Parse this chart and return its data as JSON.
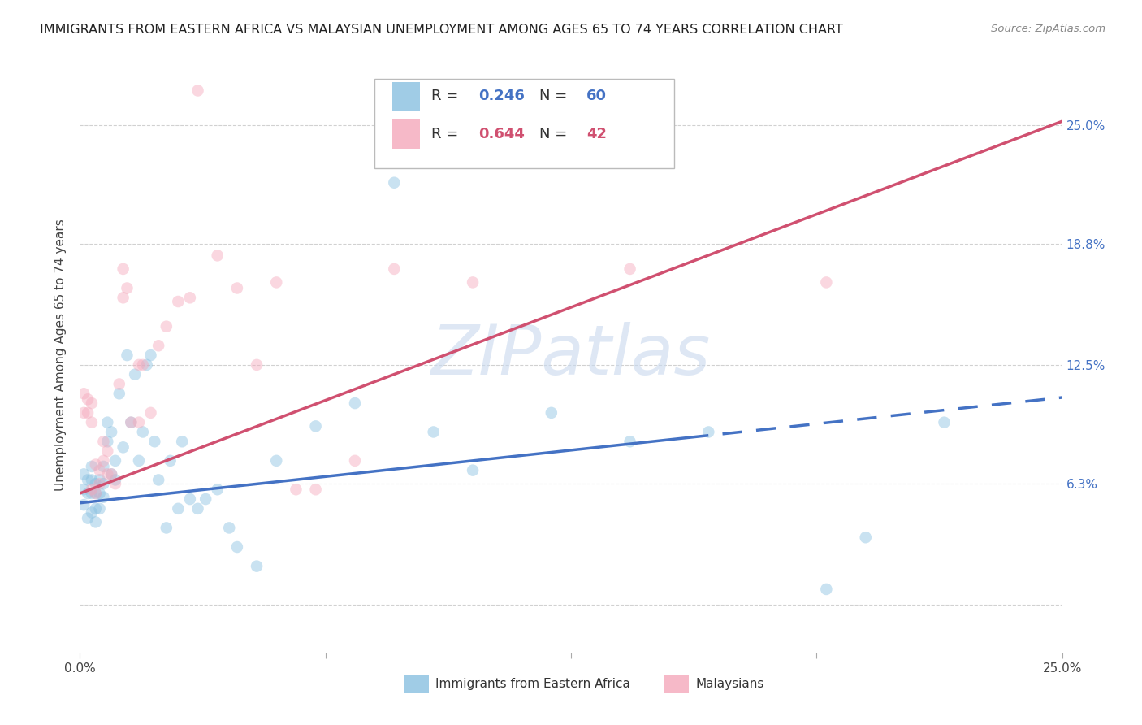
{
  "title": "IMMIGRANTS FROM EASTERN AFRICA VS MALAYSIAN UNEMPLOYMENT AMONG AGES 65 TO 74 YEARS CORRELATION CHART",
  "source": "Source: ZipAtlas.com",
  "ylabel": "Unemployment Among Ages 65 to 74 years",
  "xlim": [
    0.0,
    0.25
  ],
  "ylim": [
    -0.025,
    0.285
  ],
  "ytick_vals": [
    0.0,
    0.063,
    0.125,
    0.188,
    0.25
  ],
  "right_ytick_labels": [
    "",
    "6.3%",
    "12.5%",
    "18.8%",
    "25.0%"
  ],
  "blue_R": "0.246",
  "blue_N": "60",
  "pink_R": "0.644",
  "pink_N": "42",
  "blue_scatter_x": [
    0.001,
    0.001,
    0.001,
    0.002,
    0.002,
    0.002,
    0.003,
    0.003,
    0.003,
    0.003,
    0.004,
    0.004,
    0.004,
    0.004,
    0.005,
    0.005,
    0.005,
    0.006,
    0.006,
    0.006,
    0.007,
    0.007,
    0.008,
    0.008,
    0.009,
    0.009,
    0.01,
    0.011,
    0.012,
    0.013,
    0.014,
    0.015,
    0.016,
    0.017,
    0.018,
    0.019,
    0.02,
    0.022,
    0.023,
    0.025,
    0.026,
    0.028,
    0.03,
    0.032,
    0.035,
    0.038,
    0.04,
    0.045,
    0.05,
    0.06,
    0.07,
    0.08,
    0.09,
    0.1,
    0.12,
    0.14,
    0.16,
    0.19,
    0.2,
    0.22
  ],
  "blue_scatter_y": [
    0.068,
    0.06,
    0.052,
    0.065,
    0.058,
    0.045,
    0.072,
    0.065,
    0.058,
    0.048,
    0.063,
    0.058,
    0.05,
    0.043,
    0.065,
    0.058,
    0.05,
    0.072,
    0.063,
    0.056,
    0.095,
    0.085,
    0.09,
    0.068,
    0.075,
    0.065,
    0.11,
    0.082,
    0.13,
    0.095,
    0.12,
    0.075,
    0.09,
    0.125,
    0.13,
    0.085,
    0.065,
    0.04,
    0.075,
    0.05,
    0.085,
    0.055,
    0.05,
    0.055,
    0.06,
    0.04,
    0.03,
    0.02,
    0.075,
    0.093,
    0.105,
    0.22,
    0.09,
    0.07,
    0.1,
    0.085,
    0.09,
    0.008,
    0.035,
    0.095
  ],
  "pink_scatter_x": [
    0.001,
    0.001,
    0.002,
    0.002,
    0.003,
    0.003,
    0.003,
    0.004,
    0.004,
    0.005,
    0.005,
    0.006,
    0.006,
    0.007,
    0.007,
    0.008,
    0.009,
    0.01,
    0.011,
    0.011,
    0.012,
    0.013,
    0.015,
    0.015,
    0.016,
    0.018,
    0.02,
    0.022,
    0.025,
    0.028,
    0.03,
    0.035,
    0.04,
    0.045,
    0.05,
    0.055,
    0.06,
    0.07,
    0.08,
    0.1,
    0.14,
    0.19
  ],
  "pink_scatter_y": [
    0.11,
    0.1,
    0.107,
    0.1,
    0.105,
    0.095,
    0.06,
    0.058,
    0.073,
    0.07,
    0.063,
    0.085,
    0.075,
    0.08,
    0.068,
    0.068,
    0.063,
    0.115,
    0.175,
    0.16,
    0.165,
    0.095,
    0.095,
    0.125,
    0.125,
    0.1,
    0.135,
    0.145,
    0.158,
    0.16,
    0.268,
    0.182,
    0.165,
    0.125,
    0.168,
    0.06,
    0.06,
    0.075,
    0.175,
    0.168,
    0.175,
    0.168
  ],
  "blue_line_x0": 0.0,
  "blue_line_x1": 0.25,
  "blue_line_y0": 0.053,
  "blue_line_y1": 0.108,
  "blue_dash_break": 0.155,
  "pink_line_x0": 0.0,
  "pink_line_x1": 0.25,
  "pink_line_y0": 0.058,
  "pink_line_y1": 0.252,
  "scatter_size": 110,
  "scatter_alpha": 0.45,
  "blue_color": "#88c0e0",
  "pink_color": "#f4a8bb",
  "blue_line_color": "#4472c4",
  "pink_line_color": "#d05070",
  "background_color": "#ffffff",
  "grid_color": "#cccccc",
  "watermark_text": "ZIPatlas",
  "watermark_color": "#c8d8ee",
  "watermark_alpha": 0.6,
  "title_fontsize": 11.5,
  "axis_fontsize": 11,
  "tick_fontsize": 11,
  "legend_fontsize": 13
}
